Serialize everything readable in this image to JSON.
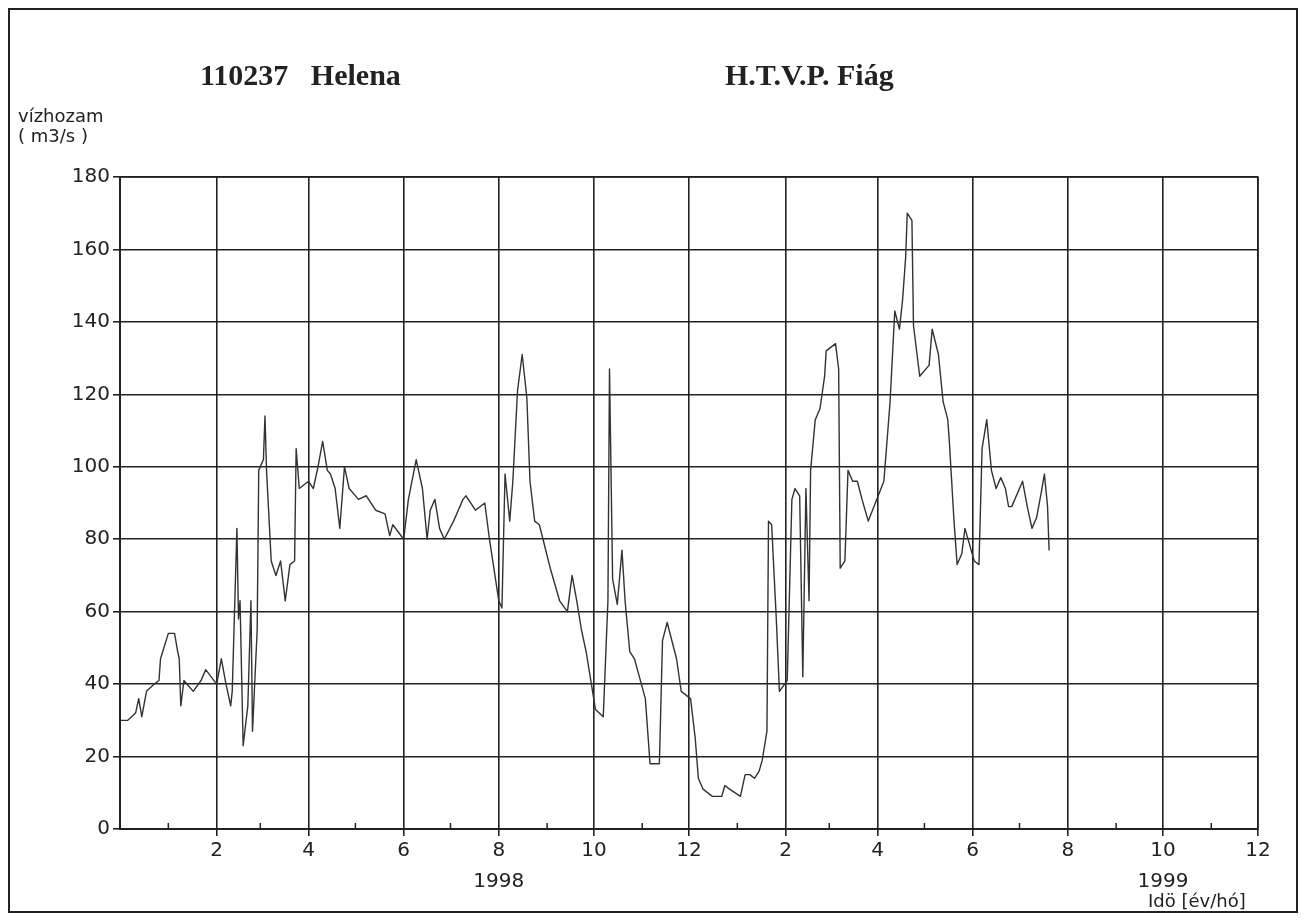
{
  "chart_data": {
    "type": "line",
    "title": "110237   Helena",
    "subtitle": "H.T.V.P. Fiág",
    "xlabel": "Idö [év/hó]",
    "ylabel": "vízhozam\n( m3/s )",
    "annotations": [
      "1998",
      "1999"
    ],
    "x": [
      "1997-12-01",
      "1997-12-06",
      "1997-12-11",
      "1997-12-13",
      "1997-12-15",
      "1997-12-18",
      "1997-12-23",
      "1997-12-26",
      "1997-12-27",
      "1998-01-01",
      "1998-01-05",
      "1998-01-07",
      "1998-01-08",
      "1998-01-09",
      "1998-01-11",
      "1998-01-17",
      "1998-01-22",
      "1998-01-25",
      "1998-02-01",
      "1998-02-04",
      "1998-02-07",
      "1998-02-10",
      "1998-02-11",
      "1998-02-14",
      "1998-02-15",
      "1998-02-16",
      "1998-02-18",
      "1998-02-21",
      "1998-02-23",
      "1998-02-24",
      "1998-02-27",
      "1998-02-28",
      "1998-03-03",
      "1998-03-04",
      "1998-03-05",
      "1998-03-08",
      "1998-03-11",
      "1998-03-14",
      "1998-03-17",
      "1998-03-20",
      "1998-03-23",
      "1998-03-24",
      "1998-03-26",
      "1998-04-01",
      "1998-04-04",
      "1998-04-07",
      "1998-04-10",
      "1998-04-13",
      "1998-04-15",
      "1998-04-18",
      "1998-04-21",
      "1998-04-24",
      "1998-04-27",
      "1998-05-03",
      "1998-05-08",
      "1998-05-14",
      "1998-05-20",
      "1998-05-23",
      "1998-05-25",
      "1998-06-01",
      "1998-06-04",
      "1998-06-09",
      "1998-06-13",
      "1998-06-16",
      "1998-06-18",
      "1998-06-21",
      "1998-06-24",
      "1998-06-27",
      "1998-07-03",
      "1998-07-06",
      "1998-07-09",
      "1998-07-11",
      "1998-07-17",
      "1998-07-23",
      "1998-07-26",
      "1998-08-01",
      "1998-08-03",
      "1998-08-05",
      "1998-08-08",
      "1998-08-10",
      "1998-08-13",
      "1998-08-16",
      "1998-08-19",
      "1998-08-21",
      "1998-08-24",
      "1998-08-27",
      "1998-09-03",
      "1998-09-09",
      "1998-09-14",
      "1998-09-17",
      "1998-09-20",
      "1998-09-23",
      "1998-09-26",
      "1998-10-02",
      "1998-10-07",
      "1998-10-10",
      "1998-10-11",
      "1998-10-13",
      "1998-10-16",
      "1998-10-19",
      "1998-10-21",
      "1998-10-24",
      "1998-10-27",
      "1998-11-03",
      "1998-11-06",
      "1998-11-12",
      "1998-11-14",
      "1998-11-17",
      "1998-11-23",
      "1998-11-26",
      "1998-12-02",
      "1998-12-05",
      "1998-12-07",
      "1998-12-10",
      "1998-12-16",
      "1998-12-22",
      "1998-12-24",
      "1998-12-27",
      "1999-01-03",
      "1999-01-06",
      "1999-01-09",
      "1999-01-12",
      "1999-01-15",
      "1999-01-17",
      "1999-01-20",
      "1999-01-21",
      "1999-01-23",
      "1999-01-26",
      "1999-01-28",
      "1999-02-02",
      "1999-02-05",
      "1999-02-07",
      "1999-02-10",
      "1999-02-12",
      "1999-02-14",
      "1999-02-16",
      "1999-02-17",
      "1999-02-20",
      "1999-02-23",
      "1999-02-26",
      "1999-02-27",
      "1999-03-05",
      "1999-03-07",
      "1999-03-08",
      "1999-03-11",
      "1999-03-13",
      "1999-03-16",
      "1999-03-19",
      "1999-03-22",
      "1999-03-26",
      "1999-04-05",
      "1999-04-09",
      "1999-04-12",
      "1999-04-15",
      "1999-04-17",
      "1999-04-19",
      "1999-04-20",
      "1999-04-23",
      "1999-04-24",
      "1999-04-28",
      "1999-05-04",
      "1999-05-06",
      "1999-05-10",
      "1999-05-13",
      "1999-05-16",
      "1999-05-17",
      "1999-05-20",
      "1999-05-22",
      "1999-05-25",
      "1999-05-27",
      "1999-06-02",
      "1999-06-05",
      "1999-06-07",
      "1999-06-10",
      "1999-06-13",
      "1999-06-16",
      "1999-06-19",
      "1999-06-22",
      "1999-06-24",
      "1999-06-26",
      "1999-07-03",
      "1999-07-06",
      "1999-07-09",
      "1999-07-12",
      "1999-07-15",
      "1999-07-17",
      "1999-07-19",
      "1999-07-20"
    ],
    "series": [
      {
        "color": "#333333",
        "values": [
          30,
          30,
          32,
          36,
          31,
          38,
          40,
          41,
          47,
          54,
          54,
          49,
          47,
          34,
          41,
          38,
          41,
          44,
          40,
          47,
          40,
          34,
          38,
          83,
          58,
          63,
          23,
          34,
          63,
          27,
          55,
          99,
          102,
          114,
          99,
          74,
          70,
          74,
          63,
          73,
          74,
          105,
          94,
          96,
          94,
          100,
          107,
          99,
          98,
          94,
          83,
          100,
          94,
          91,
          92,
          88,
          87,
          81,
          84,
          80,
          91,
          102,
          94,
          80,
          88,
          91,
          83,
          80,
          85,
          88,
          91,
          92,
          88,
          90,
          80,
          63,
          61,
          98,
          85,
          96,
          121,
          131,
          119,
          96,
          85,
          84,
          72,
          63,
          60,
          70,
          63,
          55,
          49,
          33,
          31,
          63,
          127,
          69,
          62,
          77,
          63,
          49,
          47,
          36,
          18,
          18,
          52,
          57,
          47,
          38,
          36,
          25,
          14,
          11,
          9,
          9,
          12,
          11,
          9,
          15,
          15,
          14,
          16,
          19,
          27,
          85,
          84,
          58,
          38,
          41,
          91,
          94,
          92,
          42,
          94,
          63,
          99,
          113,
          116,
          125,
          132,
          134,
          127,
          72,
          74,
          99,
          96,
          96,
          91,
          85,
          96,
          118,
          143,
          138,
          146,
          158,
          170,
          168,
          139,
          125,
          128,
          138,
          131,
          118,
          113,
          107,
          85,
          73,
          76,
          83,
          74,
          73,
          105,
          113,
          99,
          94,
          97,
          94,
          89,
          89,
          96,
          89,
          83,
          86,
          93,
          98,
          89,
          77
        ]
      }
    ],
    "xlim": [
      "1997-12-01",
      "1999-12-01"
    ],
    "xticks": [
      {
        "value": "1997-12-01",
        "label": null
      },
      {
        "value": "1998-01-01",
        "label": null
      },
      {
        "value": "1998-02-01",
        "label": "2"
      },
      {
        "value": "1998-03-01",
        "label": null
      },
      {
        "value": "1998-04-01",
        "label": "4"
      },
      {
        "value": "1998-05-01",
        "label": null
      },
      {
        "value": "1998-06-01",
        "label": "6"
      },
      {
        "value": "1998-07-01",
        "label": null
      },
      {
        "value": "1998-08-01",
        "label": "8"
      },
      {
        "value": "1998-09-01",
        "label": null
      },
      {
        "value": "1998-10-01",
        "label": "10"
      },
      {
        "value": "1998-11-01",
        "label": null
      },
      {
        "value": "1998-12-01",
        "label": "12"
      },
      {
        "value": "1999-01-01",
        "label": null
      },
      {
        "value": "1999-02-01",
        "label": "2"
      },
      {
        "value": "1999-03-01",
        "label": null
      },
      {
        "value": "1999-04-01",
        "label": "4"
      },
      {
        "value": "1999-05-01",
        "label": null
      },
      {
        "value": "1999-06-01",
        "label": "6"
      },
      {
        "value": "1999-07-01",
        "label": null
      },
      {
        "value": "1999-08-01",
        "label": "8"
      },
      {
        "value": "1999-09-01",
        "label": null
      },
      {
        "value": "1999-10-01",
        "label": "10"
      },
      {
        "value": "1999-11-01",
        "label": null
      },
      {
        "value": "1999-12-01",
        "label": "12"
      }
    ],
    "ylim": [
      0,
      180
    ],
    "yticks": [
      0,
      20,
      40,
      60,
      80,
      100,
      120,
      140,
      160,
      180
    ],
    "grid": true,
    "line_style": "solid"
  }
}
